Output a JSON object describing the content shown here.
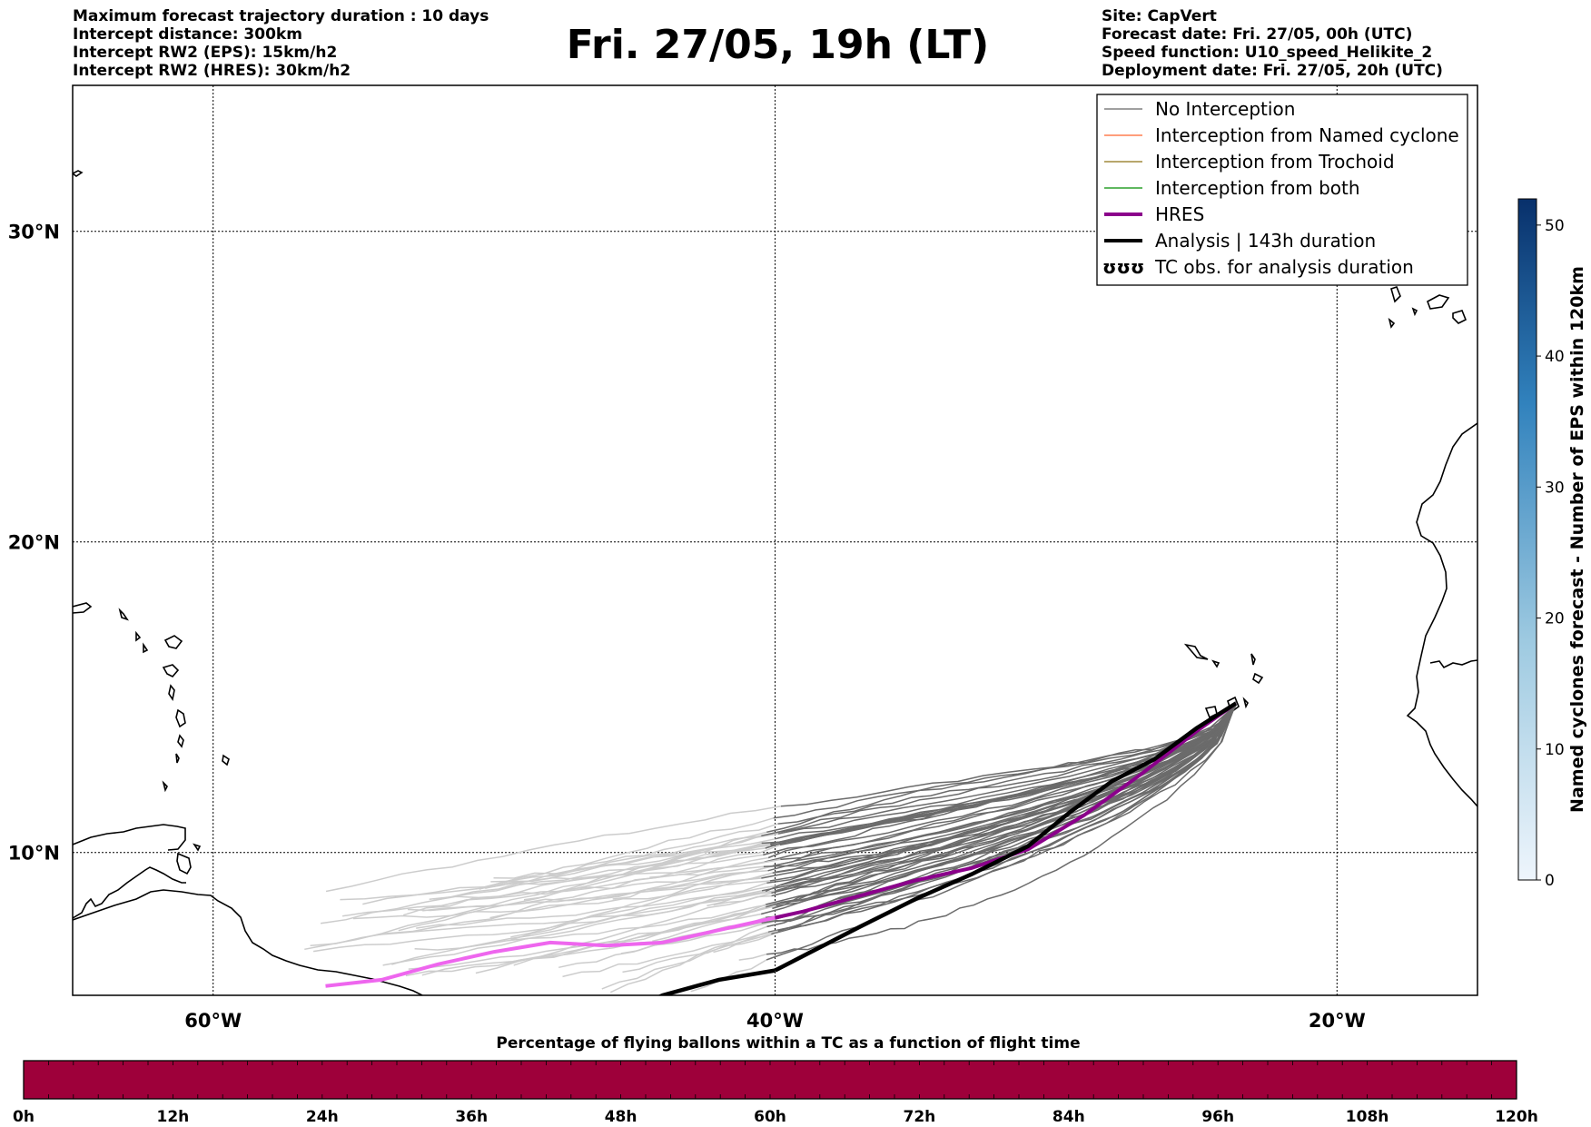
{
  "header_left": [
    "Maximum forecast trajectory duration : 10 days",
    "Intercept distance: 300km",
    "Intercept RW2 (EPS):  15km/h2",
    "Intercept RW2 (HRES): 30km/h2"
  ],
  "title": "Fri. 27/05, 19h (LT)",
  "header_right": [
    "Site: CapVert",
    "Forecast date: Fri. 27/05, 00h (UTC)",
    "Speed function: U10_speed_Helikite_2",
    "Deployment date: Fri. 27/05, 20h (UTC)"
  ],
  "map": {
    "lat_labels": [
      "30°N",
      "20°N",
      "10°N"
    ],
    "lon_labels": [
      "60°W",
      "40°W",
      "20°W"
    ],
    "lat_ticks": [
      30,
      20,
      10
    ],
    "lon_ticks": [
      -60,
      -40,
      -20
    ],
    "lon_range": [
      -65,
      -15
    ],
    "lat_range": [
      5.4,
      34.7
    ],
    "launch_site": {
      "lon": -23.6,
      "lat": 14.8
    }
  },
  "legend": [
    {
      "label": "No Interception",
      "color": "#808080",
      "kind": "line"
    },
    {
      "label": "Interception from Named cyclone",
      "color": "#ff7f50",
      "kind": "line"
    },
    {
      "label": "Interception from Trochoid",
      "color": "#a08a3c",
      "kind": "line"
    },
    {
      "label": "Interception from both",
      "color": "#2ca02c",
      "kind": "line"
    },
    {
      "label": "HRES",
      "color": "#8b008b",
      "kind": "thick"
    },
    {
      "label": "Analysis | 143h duration",
      "color": "#000000",
      "kind": "thick"
    },
    {
      "label": "TC obs. for analysis duration",
      "color": "#000000",
      "kind": "symbol"
    }
  ],
  "legend_symbol": "ʊʊʊ",
  "colorbar": {
    "label": "Named cyclones forecast - Number of EPS within 120km",
    "ticks": [
      "0",
      "10",
      "20",
      "30",
      "40",
      "50"
    ],
    "tick_values": [
      0,
      10,
      20,
      30,
      40,
      50
    ],
    "max": 52,
    "color_low": "#e8f1fa",
    "color_high": "#08306b"
  },
  "bottom_bar": {
    "title": "Percentage of flying ballons within a TC as a function of flight time",
    "ticks": [
      "0h",
      "12h",
      "24h",
      "36h",
      "48h",
      "60h",
      "72h",
      "84h",
      "96h",
      "108h",
      "120h"
    ],
    "color": "#9e003a"
  },
  "tracks": {
    "hres": [
      [
        -23.6,
        14.8
      ],
      [
        -25,
        13.9
      ],
      [
        -27,
        12.5
      ],
      [
        -29,
        11.2
      ],
      [
        -31,
        10.1
      ],
      [
        -33,
        9.5
      ],
      [
        -35,
        9.1
      ],
      [
        -37,
        8.6
      ],
      [
        -39,
        8.1
      ],
      [
        -40,
        7.9
      ],
      [
        -42,
        7.5
      ],
      [
        -44,
        7.1
      ],
      [
        -46,
        7.0
      ],
      [
        -48,
        7.1
      ],
      [
        -50,
        6.8
      ],
      [
        -52,
        6.4
      ],
      [
        -54,
        5.9
      ],
      [
        -56,
        5.7
      ]
    ],
    "analysis": [
      [
        -23.6,
        14.8
      ],
      [
        -25,
        14.0
      ],
      [
        -26.5,
        13.0
      ],
      [
        -28,
        12.3
      ],
      [
        -29.5,
        11.3
      ],
      [
        -31,
        10.2
      ],
      [
        -33,
        9.3
      ],
      [
        -35,
        8.5
      ],
      [
        -37,
        7.6
      ],
      [
        -38.5,
        6.9
      ],
      [
        -40,
        6.2
      ],
      [
        -42,
        5.9
      ],
      [
        -44,
        5.4
      ],
      [
        -45,
        5.0
      ]
    ]
  },
  "colors": {
    "eps_dark": "#6b6b6b",
    "eps_light": "#cccccc",
    "hres_dark": "#8b008b",
    "hres_light": "#ee66ee",
    "analysis": "#000000",
    "coast": "#000000"
  }
}
